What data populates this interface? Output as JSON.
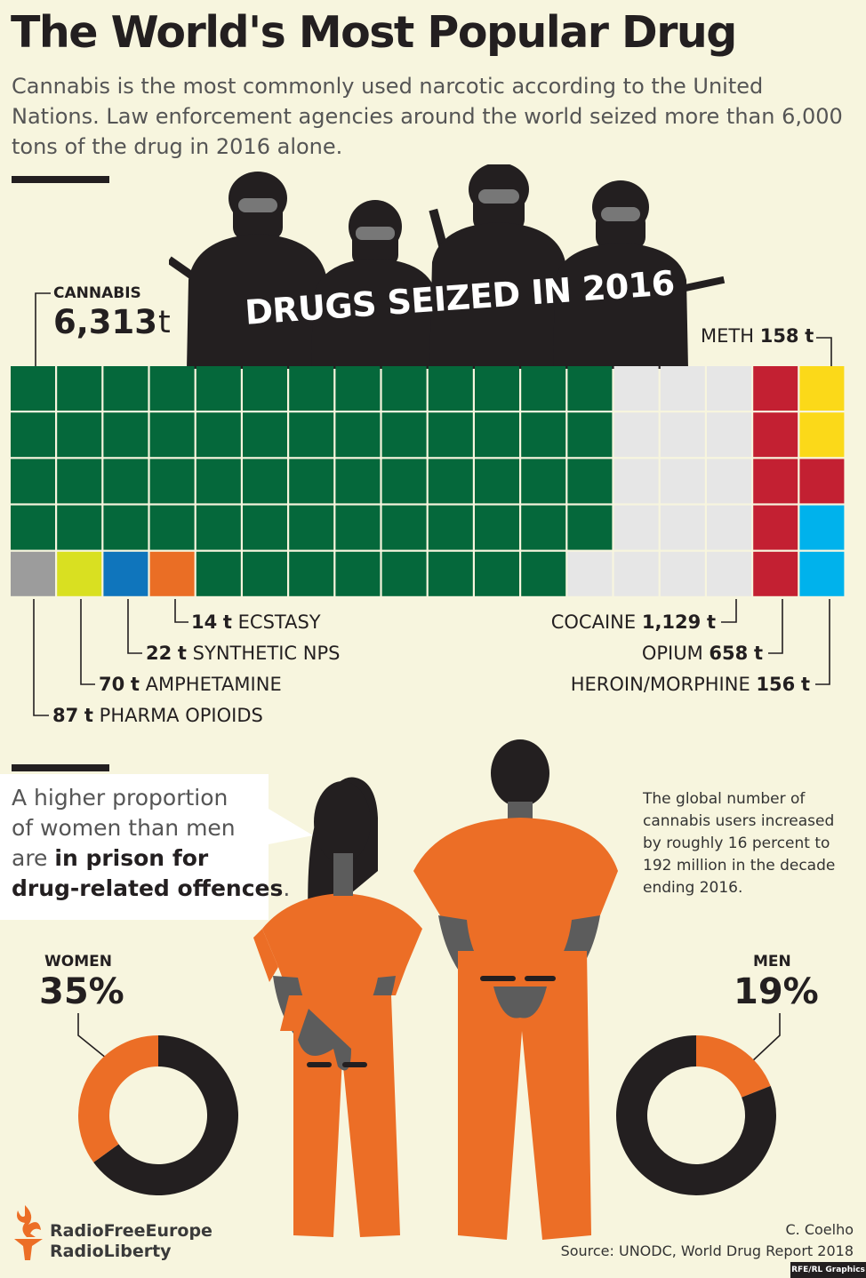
{
  "title": "The World's Most Popular Drug",
  "subtitle": "Cannabis is the most commonly used narcotic according to the United Nations. Law enforcement agencies around the world seized more than 6,000 tons of the drug in 2016 alone.",
  "seized_title": "DRUGS SEIZED IN 2016",
  "colors": {
    "cannabis": "#05683b",
    "cocaine": "#e6e6e6",
    "opium": "#c32032",
    "meth": "#fbd919",
    "heroin": "#00b2ec",
    "pharma": "#9c9c9c",
    "amphetamine": "#d9e021",
    "synthetic": "#0f75bc",
    "ecstasy": "#ea6e25",
    "orange": "#ec6e26",
    "black": "#231f20"
  },
  "chart_data": [
    {
      "type": "waffle",
      "title": "DRUGS SEIZED IN 2016",
      "unit": "t",
      "series": [
        {
          "name": "CANNABIS",
          "value": 6313,
          "value_label": "6,313",
          "cells": 60,
          "color": "#05683b"
        },
        {
          "name": "COCAINE",
          "value": 1129,
          "value_label": "1,129",
          "cells": 11,
          "color": "#e6e6e6"
        },
        {
          "name": "OPIUM",
          "value": 658,
          "value_label": "658",
          "cells": 6,
          "color": "#c32032"
        },
        {
          "name": "METH",
          "value": 158,
          "value_label": "158",
          "cells": 2,
          "color": "#fbd919"
        },
        {
          "name": "HEROIN/MORPHINE",
          "value": 156,
          "value_label": "156",
          "cells": 2,
          "color": "#00b2ec"
        },
        {
          "name": "PHARMA OPIOIDS",
          "value": 87,
          "value_label": "87",
          "cells": 1,
          "color": "#9c9c9c"
        },
        {
          "name": "AMPHETAMINE",
          "value": 70,
          "value_label": "70",
          "cells": 1,
          "color": "#d9e021"
        },
        {
          "name": "SYNTHETIC NPS",
          "value": 22,
          "value_label": "22",
          "cells": 1,
          "color": "#0f75bc"
        },
        {
          "name": "ECSTASY",
          "value": 14,
          "value_label": "14",
          "cells": 1,
          "color": "#ea6e25"
        }
      ]
    },
    {
      "type": "pie",
      "name": "WOMEN",
      "value_label": "35%",
      "slices": [
        {
          "value": 35,
          "color": "#ec6e26"
        },
        {
          "value": 65,
          "color": "#231f20"
        }
      ]
    },
    {
      "type": "pie",
      "name": "MEN",
      "value_label": "19%",
      "slices": [
        {
          "value": 19,
          "color": "#ec6e26"
        },
        {
          "value": 81,
          "color": "#231f20"
        }
      ]
    }
  ],
  "prison_text": {
    "line1": "A higher proportion",
    "line2": "of women than men",
    "line3_prefix": "are ",
    "line3_bold": "in prison for",
    "line4_bold": "drug-related offences",
    "line4_suffix": "."
  },
  "users_note": "The global number of cannabis users increased by roughly 16 percent to 192 million in the decade ending 2016.",
  "logo": {
    "line1": "RadioFreeEurope",
    "line2": "RadioLiberty"
  },
  "author": "C. Coelho",
  "source": "Source: UNODC, World Drug Report 2018",
  "credit": "RFE/RL Graphics"
}
